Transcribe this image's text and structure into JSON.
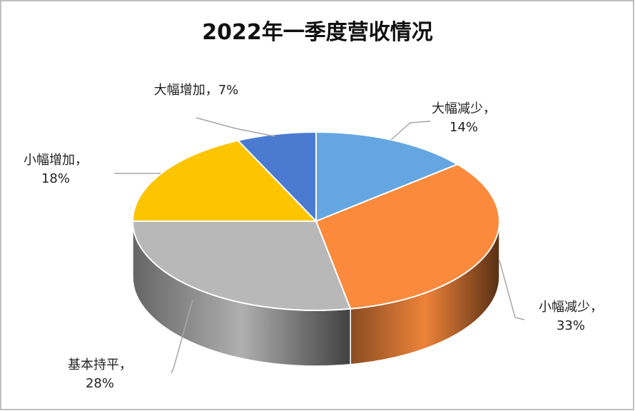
{
  "chart_data": {
    "type": "pie3d",
    "title": "2022年一季度营收情况",
    "categories": [
      "大幅减少",
      "小幅减少",
      "基本持平",
      "小幅增加",
      "大幅增加"
    ],
    "values": [
      14,
      33,
      28,
      18,
      7
    ],
    "value_labels": [
      "14%",
      "33%",
      "28%",
      "18%",
      "7%"
    ],
    "label_separator": "，",
    "colors": [
      "#64a6e2",
      "#fb8a3c",
      "#b8b8b8",
      "#fcc500",
      "#4a7bd1"
    ]
  }
}
